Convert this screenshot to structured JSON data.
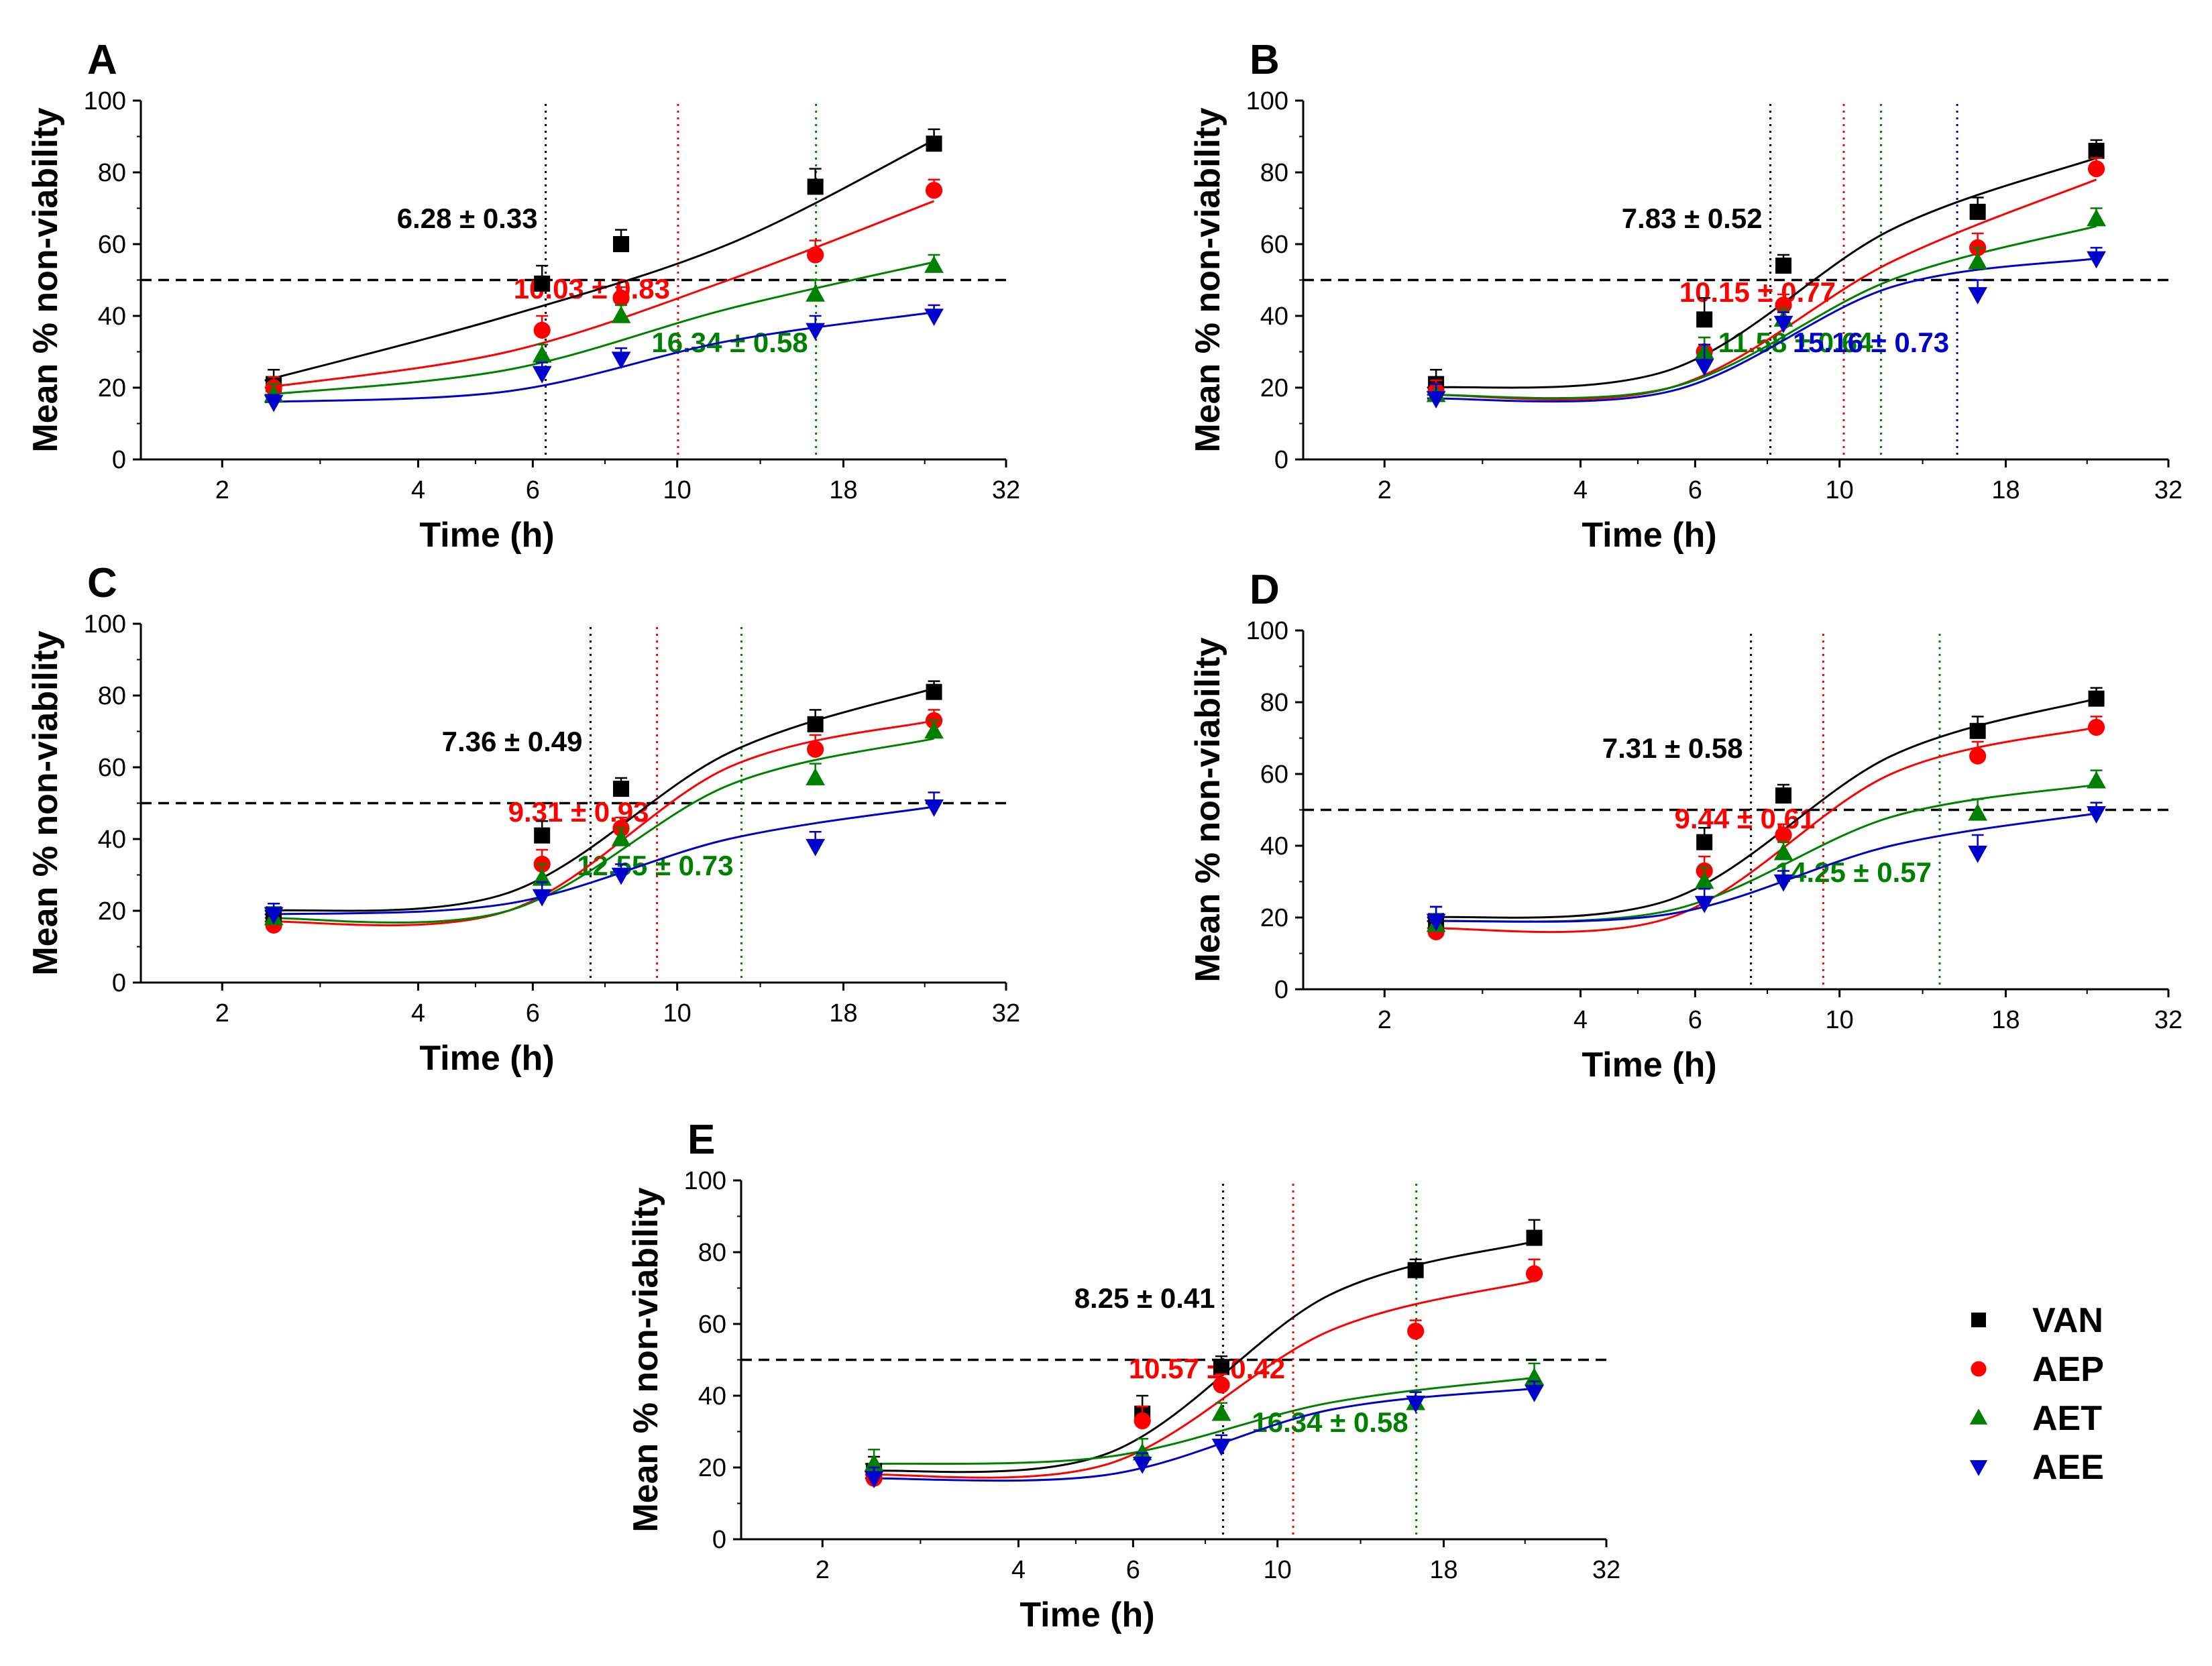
{
  "figure": {
    "legend": [
      {
        "label": "VAN",
        "color": "#000000",
        "marker": "square"
      },
      {
        "label": "AEP",
        "color": "#ff0000",
        "marker": "circle"
      },
      {
        "label": "AET",
        "color": "#008000",
        "marker": "triangle-up"
      },
      {
        "label": "AEE",
        "color": "#0000cc",
        "marker": "triangle-down"
      }
    ]
  },
  "chart_data": [
    {
      "type": "scatter",
      "panel": "A",
      "xlabel": "Time (h)",
      "ylabel": "Mean % non-viability",
      "xscale": "log2",
      "xlim": [
        1.5,
        32
      ],
      "ylim": [
        0,
        100
      ],
      "xticks": [
        2,
        4,
        6,
        10,
        18,
        32
      ],
      "yticks": [
        0,
        20,
        40,
        60,
        80,
        100
      ],
      "x": [
        2.4,
        6.2,
        8.2,
        16.3,
        24.8
      ],
      "reference_line_y": 50,
      "series": [
        {
          "name": "VAN",
          "values": [
            21,
            49,
            60,
            76,
            88
          ],
          "errors": [
            4,
            5,
            4,
            5,
            4
          ],
          "fit": [
            22,
            40,
            60,
            89
          ]
        },
        {
          "name": "AEP",
          "values": [
            20,
            36,
            45,
            57,
            75
          ],
          "errors": [
            3,
            4,
            3,
            4,
            3
          ],
          "fit": [
            20,
            30,
            50,
            72
          ]
        },
        {
          "name": "AET",
          "values": [
            18,
            29,
            40,
            46,
            54
          ],
          "errors": [
            3,
            3,
            3,
            4,
            3
          ],
          "fit": [
            18,
            25,
            42,
            55
          ]
        },
        {
          "name": "AEE",
          "values": [
            16,
            24,
            28,
            36,
            40
          ],
          "errors": [
            2,
            3,
            3,
            4,
            3
          ],
          "fit": [
            16,
            19,
            33,
            41
          ]
        }
      ],
      "annotations": [
        {
          "text": "6.28 ± 0.33",
          "x": 6.28,
          "color": "#000000"
        },
        {
          "text": "10.03 ± 0.83",
          "x": 10.03,
          "color": "#ff0000"
        },
        {
          "text": "16.34 ± 0.58",
          "x": 16.34,
          "color": "#008000"
        }
      ]
    },
    {
      "type": "scatter",
      "panel": "B",
      "xlabel": "Time (h)",
      "ylabel": "Mean % non-viability",
      "xscale": "log2",
      "xlim": [
        1.5,
        32
      ],
      "ylim": [
        0,
        100
      ],
      "xticks": [
        2,
        4,
        6,
        10,
        18,
        32
      ],
      "yticks": [
        0,
        20,
        40,
        60,
        80,
        100
      ],
      "x": [
        2.4,
        6.2,
        8.2,
        16.3,
        24.8
      ],
      "reference_line_y": 50,
      "series": [
        {
          "name": "VAN",
          "values": [
            21,
            39,
            54,
            69,
            86
          ],
          "errors": [
            4,
            6,
            3,
            4,
            3
          ],
          "fit": [
            20,
            25,
            64,
            84
          ]
        },
        {
          "name": "AEP",
          "values": [
            19,
            30,
            43,
            59,
            81
          ],
          "errors": [
            3,
            4,
            3,
            4,
            3
          ],
          "fit": [
            18,
            20,
            55,
            78
          ]
        },
        {
          "name": "AET",
          "values": [
            18,
            30,
            39,
            55,
            67
          ],
          "errors": [
            3,
            4,
            3,
            4,
            3
          ],
          "fit": [
            18,
            20,
            50,
            65
          ]
        },
        {
          "name": "AEE",
          "values": [
            17,
            26,
            38,
            46,
            56
          ],
          "errors": [
            4,
            6,
            3,
            4,
            3
          ],
          "fit": [
            17,
            19,
            48,
            56
          ]
        }
      ],
      "annotations": [
        {
          "text": "7.83 ± 0.52",
          "x": 7.83,
          "color": "#000000"
        },
        {
          "text": "10.15 ± 0.77",
          "x": 10.15,
          "color": "#ff0000"
        },
        {
          "text": "11.58 ± 0.64",
          "x": 11.58,
          "color": "#008000"
        },
        {
          "text": "15.16 ± 0.73",
          "x": 15.16,
          "color": "#0000cc"
        }
      ]
    },
    {
      "type": "scatter",
      "panel": "C",
      "xlabel": "Time (h)",
      "ylabel": "Mean % non-viability",
      "xscale": "log2",
      "xlim": [
        1.5,
        32
      ],
      "ylim": [
        0,
        100
      ],
      "xticks": [
        2,
        4,
        6,
        10,
        18,
        32
      ],
      "yticks": [
        0,
        20,
        40,
        60,
        80,
        100
      ],
      "x": [
        2.4,
        6.2,
        8.2,
        16.3,
        24.8
      ],
      "reference_line_y": 50,
      "series": [
        {
          "name": "VAN",
          "values": [
            19,
            41,
            54,
            72,
            81
          ],
          "errors": [
            3,
            4,
            3,
            4,
            3
          ],
          "fit": [
            20,
            25,
            64,
            82
          ]
        },
        {
          "name": "AEP",
          "values": [
            16,
            33,
            43,
            65,
            73
          ],
          "errors": [
            2,
            4,
            3,
            4,
            3
          ],
          "fit": [
            17,
            20,
            60,
            73
          ]
        },
        {
          "name": "AET",
          "values": [
            18,
            29,
            40,
            57,
            70
          ],
          "errors": [
            3,
            4,
            3,
            4,
            3
          ],
          "fit": [
            18,
            20,
            55,
            68
          ]
        },
        {
          "name": "AEE",
          "values": [
            19,
            24,
            30,
            38,
            49
          ],
          "errors": [
            3,
            4,
            3,
            4,
            4
          ],
          "fit": [
            19,
            22,
            40,
            49
          ]
        }
      ],
      "annotations": [
        {
          "text": "7.36 ± 0.49",
          "x": 7.36,
          "color": "#000000"
        },
        {
          "text": "9.31 ± 0.93",
          "x": 9.31,
          "color": "#ff0000"
        },
        {
          "text": "12.55 ± 0.73",
          "x": 12.55,
          "color": "#008000"
        }
      ]
    },
    {
      "type": "scatter",
      "panel": "D",
      "xlabel": "Time (h)",
      "ylabel": "Mean % non-viability",
      "xscale": "log2",
      "xlim": [
        1.5,
        32
      ],
      "ylim": [
        0,
        100
      ],
      "xticks": [
        2,
        4,
        6,
        10,
        18,
        32
      ],
      "yticks": [
        0,
        20,
        40,
        60,
        80,
        100
      ],
      "x": [
        2.4,
        6.2,
        8.2,
        16.3,
        24.8
      ],
      "reference_line_y": 50,
      "series": [
        {
          "name": "VAN",
          "values": [
            19,
            41,
            54,
            72,
            81
          ],
          "errors": [
            4,
            4,
            3,
            4,
            3
          ],
          "fit": [
            20,
            25,
            65,
            81
          ]
        },
        {
          "name": "AEP",
          "values": [
            16,
            33,
            43,
            65,
            73
          ],
          "errors": [
            3,
            4,
            3,
            4,
            3
          ],
          "fit": [
            17,
            20,
            60,
            73
          ]
        },
        {
          "name": "AET",
          "values": [
            18,
            30,
            38,
            49,
            58
          ],
          "errors": [
            3,
            4,
            3,
            4,
            3
          ],
          "fit": [
            19,
            22,
            48,
            57
          ]
        },
        {
          "name": "AEE",
          "values": [
            19,
            24,
            30,
            38,
            49
          ],
          "errors": [
            4,
            4,
            3,
            5,
            3
          ],
          "fit": [
            19,
            21,
            40,
            49
          ]
        }
      ],
      "annotations": [
        {
          "text": "7.31 ± 0.58",
          "x": 7.31,
          "color": "#000000"
        },
        {
          "text": "9.44 ± 0.61",
          "x": 9.44,
          "color": "#ff0000"
        },
        {
          "text": "14.25 ± 0.57",
          "x": 14.25,
          "color": "#008000"
        }
      ]
    },
    {
      "type": "scatter",
      "panel": "E",
      "xlabel": "Time (h)",
      "ylabel": "Mean % non-viability",
      "xscale": "log2",
      "xlim": [
        1.5,
        32
      ],
      "ylim": [
        0,
        100
      ],
      "xticks": [
        2,
        4,
        6,
        10,
        18,
        32
      ],
      "yticks": [
        0,
        20,
        40,
        60,
        80,
        100
      ],
      "x": [
        2.4,
        6.2,
        8.2,
        16.3,
        24.8
      ],
      "reference_line_y": 50,
      "series": [
        {
          "name": "VAN",
          "values": [
            19,
            35,
            48,
            75,
            84
          ],
          "errors": [
            4,
            5,
            3,
            3,
            5
          ],
          "fit": [
            19,
            24,
            68,
            83
          ]
        },
        {
          "name": "AEP",
          "values": [
            17,
            33,
            43,
            58,
            74
          ],
          "errors": [
            4,
            4,
            3,
            3,
            4
          ],
          "fit": [
            18,
            21,
            58,
            72
          ]
        },
        {
          "name": "AET",
          "values": [
            21,
            24,
            35,
            38,
            45
          ],
          "errors": [
            4,
            4,
            3,
            3,
            4
          ],
          "fit": [
            21,
            23,
            38,
            45
          ]
        },
        {
          "name": "AEE",
          "values": [
            17,
            21,
            26,
            38,
            41
          ],
          "errors": [
            3,
            3,
            3,
            3,
            3
          ],
          "fit": [
            17,
            18,
            36,
            42
          ]
        }
      ],
      "annotations": [
        {
          "text": "8.25 ± 0.41",
          "x": 8.25,
          "color": "#000000"
        },
        {
          "text": "10.57 ± 0.42",
          "x": 10.57,
          "color": "#ff0000"
        },
        {
          "text": "16.34 ± 0.58",
          "x": 16.34,
          "color": "#008000"
        }
      ]
    }
  ]
}
